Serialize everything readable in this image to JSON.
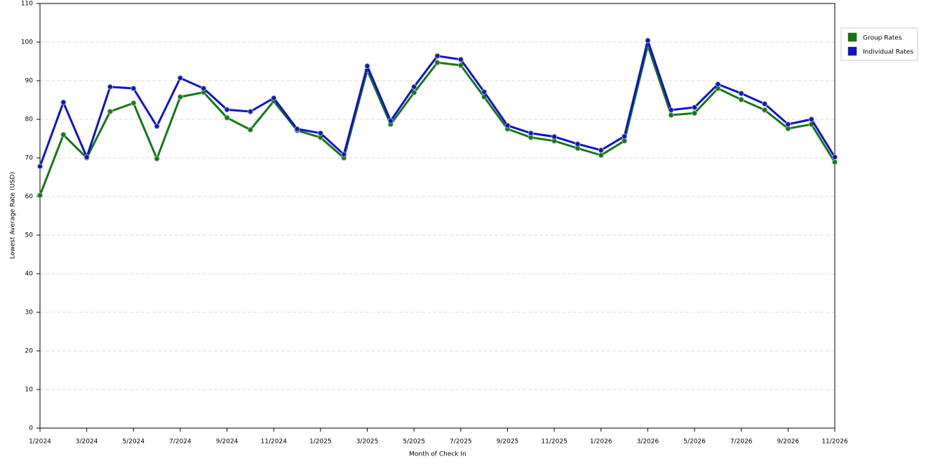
{
  "chart_data": {
    "type": "line",
    "x_label": "Month of Check In",
    "y_label": "Lowest Average Rate (USD)",
    "categories": [
      "1/2024",
      null,
      "3/2024",
      null,
      "5/2024",
      null,
      "7/2024",
      null,
      "9/2024",
      null,
      "11/2024",
      null,
      "1/2025",
      null,
      "3/2025",
      null,
      "5/2025",
      null,
      "7/2025",
      null,
      "9/2025",
      null,
      "11/2025",
      null,
      "1/2026",
      null,
      "3/2026",
      null,
      "5/2026",
      null,
      "7/2026",
      null,
      "9/2026",
      null,
      "11/2026"
    ],
    "series": [
      {
        "name": "Group Rates",
        "color": "#137813",
        "values": [
          60.3,
          76,
          70,
          82,
          84.2,
          69.8,
          85.8,
          87,
          80.4,
          77.3,
          84.7,
          77.1,
          75.3,
          70,
          92.7,
          78.7,
          86.9,
          94.7,
          94,
          85.8,
          77.5,
          75.3,
          74.4,
          72.5,
          70.7,
          74.4,
          99.1,
          81.1,
          81.6,
          88,
          85.1,
          82.4,
          77.6,
          78.7,
          68.9
        ]
      },
      {
        "name": "Individual Rates",
        "color": "#1111cc",
        "values": [
          67.8,
          84.4,
          70.2,
          88.4,
          88,
          78.2,
          90.7,
          88,
          82.5,
          82,
          85.5,
          77.5,
          76.4,
          70.9,
          93.8,
          79.6,
          88.4,
          96.4,
          95.5,
          87.1,
          78.4,
          76.4,
          75.5,
          73.6,
          72,
          75.6,
          100.4,
          82.4,
          83.1,
          89.1,
          86.7,
          84,
          78.7,
          80,
          70.2
        ]
      }
    ],
    "ylim": [
      0,
      110
    ],
    "yticks": [
      0,
      10,
      20,
      30,
      40,
      50,
      60,
      70,
      80,
      90,
      100,
      110
    ],
    "grid": true,
    "legend": "right"
  }
}
